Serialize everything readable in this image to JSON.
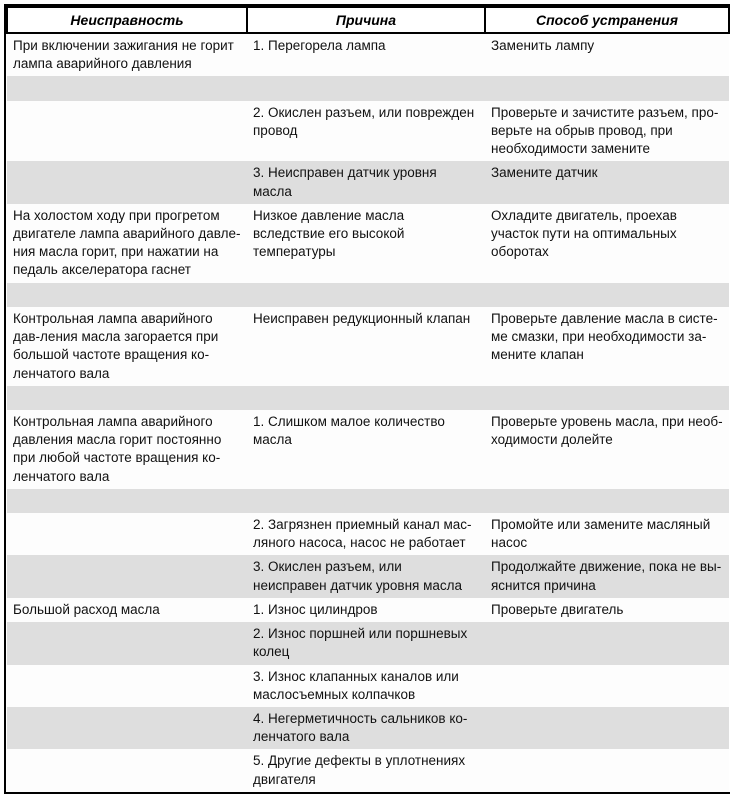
{
  "columns": [
    "Неисправность",
    "Причина",
    "Способ устранения"
  ],
  "colors": {
    "border": "#000000",
    "row_light": "#fdfdfd",
    "row_dark": "#dedede",
    "text": "#111111"
  },
  "font": {
    "family": "Arial",
    "size_header_pt": 11,
    "size_body_pt": 10
  },
  "rows": [
    {
      "shade": "light",
      "c1": "При включении зажигания не горит лампа аварийного давления",
      "c2": "1. Перегорела лампа",
      "c3": "Заменить лампу"
    },
    {
      "shade": "dark",
      "c1": "",
      "c2": "",
      "c3": ""
    },
    {
      "shade": "light",
      "c1": "",
      "c2": "2. Окислен разъем, или поврежден провод",
      "c3": "Проверьте и зачистите разъем, про-верьте на обрыв провод, при необходимости замените"
    },
    {
      "shade": "dark",
      "c1": "",
      "c2": "3. Неисправен датчик уровня масла",
      "c3": "Замените датчик"
    },
    {
      "shade": "light",
      "c1": "На холостом ходу при прогретом двигателе лампа аварийного давле-ния масла горит, при нажатии на педаль акселератора гаснет",
      "c2": "Низкое давление масла вследствие его высокой температуры",
      "c3": "Охладите двигатель, проехав участок пути на оптимальных оборотах"
    },
    {
      "shade": "dark",
      "c1": "",
      "c2": "",
      "c3": ""
    },
    {
      "shade": "light",
      "c1": "Контрольная лампа аварийного дав-ления масла загорается при большой частоте вращения ко-ленчатого вала",
      "c2": "Неисправен редукционный клапан",
      "c3": "Проверьте давление масла в систе-ме смазки, при необходимости за-мените клапан"
    },
    {
      "shade": "dark",
      "c1": "",
      "c2": "",
      "c3": ""
    },
    {
      "shade": "light",
      "c1": "Контрольная лампа аварийного давления масла горит постоянно при любой частоте вращения ко-ленчатого вала",
      "c2": "1. Слишком малое количество масла",
      "c3": "Проверьте уровень масла, при необ-ходимости долейте"
    },
    {
      "shade": "dark",
      "c1": "",
      "c2": "",
      "c3": ""
    },
    {
      "shade": "light",
      "c1": "",
      "c2": "2. Загрязнен приемный канал мас-ляного насоса, насос не работает",
      "c3": "Промойте или замените масляный насос"
    },
    {
      "shade": "dark",
      "c1": "",
      "c2": "3. Окислен разъем, или неисправен датчик уровня масла",
      "c3": "Продолжайте движение, пока не вы-яснится причина"
    },
    {
      "shade": "light",
      "c1": "Большой расход масла",
      "c2": "1. Износ цилиндров",
      "c3": "Проверьте двигатель"
    },
    {
      "shade": "dark",
      "c1": "",
      "c2": "2. Износ поршней или поршневых колец",
      "c3": ""
    },
    {
      "shade": "light",
      "c1": "",
      "c2": "3. Износ клапанных каналов или маслосъемных колпачков",
      "c3": ""
    },
    {
      "shade": "dark",
      "c1": "",
      "c2": "4. Негерметичность сальников ко-ленчатого вала",
      "c3": ""
    },
    {
      "shade": "light",
      "c1": "",
      "c2": "5. Другие дефекты в уплотнениях двигателя",
      "c3": ""
    }
  ]
}
